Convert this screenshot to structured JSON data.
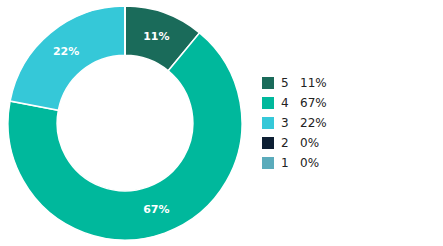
{
  "chart_data": {
    "type": "pie",
    "categories": [
      "5   11%",
      "4   67%",
      "3   22%",
      "2   0%",
      "1   0%"
    ],
    "values": [
      11,
      67,
      22,
      0.0001,
      0.0001
    ],
    "value_labels": [
      "11%",
      "67%",
      "22%",
      null,
      null
    ],
    "data_labels": true,
    "colors": [
      "#1a6b5a",
      "#00b89c",
      "#35c8d8",
      "#0d1f33",
      "#5aabbb"
    ],
    "legend": "right"
  }
}
